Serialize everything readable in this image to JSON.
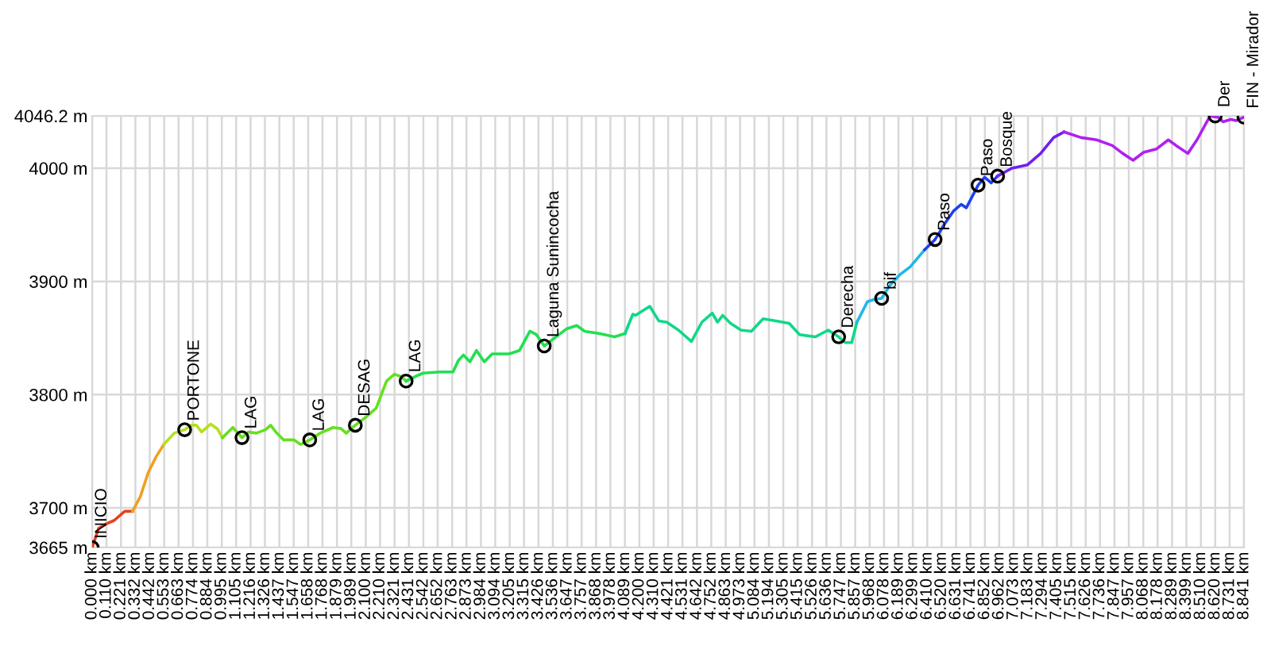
{
  "chart_data": {
    "type": "line",
    "xlim": [
      0,
      8.841
    ],
    "ylim": [
      3665,
      4046.2
    ],
    "xticks": [
      {
        "value": 0.0,
        "label": "0.000 km"
      },
      {
        "value": 0.11,
        "label": "0.110 km"
      },
      {
        "value": 0.221,
        "label": "0.221 km"
      },
      {
        "value": 0.332,
        "label": "0.332 km"
      },
      {
        "value": 0.442,
        "label": "0.442 km"
      },
      {
        "value": 0.553,
        "label": "0.553 km"
      },
      {
        "value": 0.663,
        "label": "0.663 km"
      },
      {
        "value": 0.774,
        "label": "0.774 km"
      },
      {
        "value": 0.884,
        "label": "0.884 km"
      },
      {
        "value": 0.995,
        "label": "0.995 km"
      },
      {
        "value": 1.105,
        "label": "1.105 km"
      },
      {
        "value": 1.216,
        "label": "1.216 km"
      },
      {
        "value": 1.326,
        "label": "1.326 km"
      },
      {
        "value": 1.437,
        "label": "1.437 km"
      },
      {
        "value": 1.547,
        "label": "1.547 km"
      },
      {
        "value": 1.658,
        "label": "1.658 km"
      },
      {
        "value": 1.768,
        "label": "1.768 km"
      },
      {
        "value": 1.879,
        "label": "1.879 km"
      },
      {
        "value": 1.989,
        "label": "1.989 km"
      },
      {
        "value": 2.1,
        "label": "2.100 km"
      },
      {
        "value": 2.21,
        "label": "2.210 km"
      },
      {
        "value": 2.321,
        "label": "2.321 km"
      },
      {
        "value": 2.431,
        "label": "2.431 km"
      },
      {
        "value": 2.542,
        "label": "2.542 km"
      },
      {
        "value": 2.652,
        "label": "2.652 km"
      },
      {
        "value": 2.763,
        "label": "2.763 km"
      },
      {
        "value": 2.873,
        "label": "2.873 km"
      },
      {
        "value": 2.984,
        "label": "2.984 km"
      },
      {
        "value": 3.094,
        "label": "3.094 km"
      },
      {
        "value": 3.205,
        "label": "3.205 km"
      },
      {
        "value": 3.315,
        "label": "3.315 km"
      },
      {
        "value": 3.426,
        "label": "3.426 km"
      },
      {
        "value": 3.536,
        "label": "3.536 km"
      },
      {
        "value": 3.647,
        "label": "3.647 km"
      },
      {
        "value": 3.757,
        "label": "3.757 km"
      },
      {
        "value": 3.868,
        "label": "3.868 km"
      },
      {
        "value": 3.978,
        "label": "3.978 km"
      },
      {
        "value": 4.089,
        "label": "4.089 km"
      },
      {
        "value": 4.2,
        "label": "4.200 km"
      },
      {
        "value": 4.31,
        "label": "4.310 km"
      },
      {
        "value": 4.421,
        "label": "4.421 km"
      },
      {
        "value": 4.531,
        "label": "4.531 km"
      },
      {
        "value": 4.642,
        "label": "4.642 km"
      },
      {
        "value": 4.752,
        "label": "4.752 km"
      },
      {
        "value": 4.863,
        "label": "4.863 km"
      },
      {
        "value": 4.973,
        "label": "4.973 km"
      },
      {
        "value": 5.084,
        "label": "5.084 km"
      },
      {
        "value": 5.194,
        "label": "5.194 km"
      },
      {
        "value": 5.305,
        "label": "5.305 km"
      },
      {
        "value": 5.415,
        "label": "5.415 km"
      },
      {
        "value": 5.526,
        "label": "5.526 km"
      },
      {
        "value": 5.636,
        "label": "5.636 km"
      },
      {
        "value": 5.747,
        "label": "5.747 km"
      },
      {
        "value": 5.857,
        "label": "5.857 km"
      },
      {
        "value": 5.968,
        "label": "5.968 km"
      },
      {
        "value": 6.078,
        "label": "6.078 km"
      },
      {
        "value": 6.189,
        "label": "6.189 km"
      },
      {
        "value": 6.299,
        "label": "6.299 km"
      },
      {
        "value": 6.41,
        "label": "6.410 km"
      },
      {
        "value": 6.52,
        "label": "6.520 km"
      },
      {
        "value": 6.631,
        "label": "6.631 km"
      },
      {
        "value": 6.741,
        "label": "6.741 km"
      },
      {
        "value": 6.852,
        "label": "6.852 km"
      },
      {
        "value": 6.962,
        "label": "6.962 km"
      },
      {
        "value": 7.073,
        "label": "7.073 km"
      },
      {
        "value": 7.183,
        "label": "7.183 km"
      },
      {
        "value": 7.294,
        "label": "7.294 km"
      },
      {
        "value": 7.405,
        "label": "7.405 km"
      },
      {
        "value": 7.515,
        "label": "7.515 km"
      },
      {
        "value": 7.626,
        "label": "7.626 km"
      },
      {
        "value": 7.736,
        "label": "7.736 km"
      },
      {
        "value": 7.847,
        "label": "7.847 km"
      },
      {
        "value": 7.957,
        "label": "7.957 km"
      },
      {
        "value": 8.068,
        "label": "8.068 km"
      },
      {
        "value": 8.178,
        "label": "8.178 km"
      },
      {
        "value": 8.289,
        "label": "8.289 km"
      },
      {
        "value": 8.399,
        "label": "8.399 km"
      },
      {
        "value": 8.51,
        "label": "8.510 km"
      },
      {
        "value": 8.62,
        "label": "8.620 km"
      },
      {
        "value": 8.731,
        "label": "8.731 km"
      },
      {
        "value": 8.841,
        "label": "8.841 km"
      }
    ],
    "yticks": [
      {
        "value": 3665,
        "label": "3665 m"
      },
      {
        "value": 3700,
        "label": "3700 m"
      },
      {
        "value": 3800,
        "label": "3800 m"
      },
      {
        "value": 3900,
        "label": "3900 m"
      },
      {
        "value": 4000,
        "label": "4000 m"
      },
      {
        "value": 4046.2,
        "label": "4046.2 m"
      }
    ],
    "grid": true,
    "series": [
      {
        "color": "#e8401c",
        "x": [
          0.0,
          0.05,
          0.11,
          0.17,
          0.25,
          0.31
        ],
        "values": [
          3665,
          3682,
          3686,
          3689,
          3697,
          3697
        ]
      },
      {
        "color": "#f0a020",
        "x": [
          0.31,
          0.37,
          0.43,
          0.49,
          0.55
        ],
        "values": [
          3697,
          3710,
          3731,
          3745,
          3756
        ]
      },
      {
        "color": "#b4e01c",
        "x": [
          0.55,
          0.63,
          0.71,
          0.76,
          0.8,
          0.84,
          0.91,
          0.96,
          1.0
        ],
        "values": [
          3756,
          3766,
          3769,
          3773,
          3773,
          3767,
          3774,
          3770,
          3762
        ]
      },
      {
        "color": "#64e020",
        "x": [
          1.0,
          1.08,
          1.15,
          1.2,
          1.26,
          1.33,
          1.37,
          1.41,
          1.47,
          1.55,
          1.6,
          1.67,
          1.75,
          1.85,
          1.91,
          1.95,
          2.02,
          2.1,
          2.18,
          2.26,
          2.32,
          2.37,
          2.41
        ],
        "values": [
          3762,
          3771,
          3762,
          3767,
          3766,
          3769,
          3773,
          3767,
          3760,
          3760,
          3756,
          3760,
          3766,
          3771,
          3770,
          3766,
          3773,
          3780,
          3788,
          3812,
          3818,
          3816,
          3812
        ]
      },
      {
        "color": "#20e050",
        "x": [
          2.41,
          2.48,
          2.54,
          2.67,
          2.77,
          2.81,
          2.85,
          2.9,
          2.95,
          3.01,
          3.07,
          3.2,
          3.28,
          3.36,
          3.41,
          3.47,
          3.56,
          3.64,
          3.72,
          3.78,
          3.89,
          4.01,
          4.09
        ],
        "values": [
          3812,
          3816,
          3819,
          3820,
          3820,
          3830,
          3835,
          3829,
          3839,
          3829,
          3836,
          3836,
          3839,
          3856,
          3853,
          3843,
          3851,
          3858,
          3861,
          3856,
          3854,
          3851,
          3854
        ]
      },
      {
        "color": "#10d888",
        "x": [
          4.09,
          4.15,
          4.17,
          4.28,
          4.35,
          4.41,
          4.5,
          4.6,
          4.68,
          4.76,
          4.8,
          4.84,
          4.9,
          4.98,
          5.06,
          5.15,
          5.25,
          5.35,
          5.43,
          5.55,
          5.65,
          5.73,
          5.78,
          5.83,
          5.87
        ],
        "values": [
          3854,
          3871,
          3870,
          3878,
          3865,
          3864,
          3857,
          3847,
          3864,
          3872,
          3864,
          3870,
          3863,
          3857,
          3856,
          3867,
          3865,
          3863,
          3853,
          3851,
          3857,
          3851,
          3846,
          3846,
          3864
        ]
      },
      {
        "color": "#20b8e8",
        "x": [
          5.87,
          5.95,
          6.0,
          6.06,
          6.12,
          6.2,
          6.28,
          6.39
        ],
        "values": [
          3864,
          3882,
          3884,
          3885,
          3896,
          3906,
          3913,
          3928
        ]
      },
      {
        "color": "#2040f0",
        "x": [
          6.39,
          6.47,
          6.55,
          6.61,
          6.67,
          6.71,
          6.8,
          6.85,
          6.9,
          6.95
        ],
        "values": [
          3928,
          3937,
          3952,
          3962,
          3968,
          3965,
          3985,
          3992,
          3987,
          3993
        ]
      },
      {
        "color": "#7020f0",
        "x": [
          6.95,
          7.06,
          7.18,
          7.28,
          7.38,
          7.46
        ],
        "values": [
          3993,
          4000,
          4003,
          4013,
          4027,
          4032
        ]
      },
      {
        "color": "#b020f0",
        "x": [
          7.46,
          7.59,
          7.71,
          7.83,
          7.91,
          7.99,
          8.07,
          8.17,
          8.26,
          8.32,
          8.41,
          8.48,
          8.58,
          8.64,
          8.68,
          8.74,
          8.78,
          8.84
        ],
        "values": [
          4032,
          4027,
          4025,
          4020,
          4013,
          4007,
          4014,
          4017,
          4025,
          4020,
          4013,
          4025,
          4046,
          4045,
          4041,
          4043,
          4042,
          4045
        ]
      },
      {
        "type": "scatter",
        "color": "#000000",
        "marker": "circle",
        "x": [
          0.0,
          0.71,
          1.15,
          1.67,
          2.02,
          2.41,
          3.47,
          5.73,
          6.06,
          6.47,
          6.8,
          6.95,
          8.62,
          8.841
        ],
        "values": [
          3665,
          3769,
          3762,
          3760,
          3773,
          3812,
          3843,
          3851,
          3885,
          3937,
          3985,
          3993,
          4046,
          4045
        ]
      }
    ],
    "annotations": [
      {
        "text": "INICIO",
        "x": 0.0,
        "y": 3665
      },
      {
        "text": "PORTONE",
        "x": 0.71,
        "y": 3769
      },
      {
        "text": "LAG",
        "x": 1.15,
        "y": 3762
      },
      {
        "text": "LAG",
        "x": 1.67,
        "y": 3760
      },
      {
        "text": "DESAG",
        "x": 2.02,
        "y": 3773
      },
      {
        "text": "LAG",
        "x": 2.41,
        "y": 3812
      },
      {
        "text": "Laguna Sunincocha",
        "x": 3.47,
        "y": 3843
      },
      {
        "text": "Derecha",
        "x": 5.73,
        "y": 3851
      },
      {
        "text": "bif",
        "x": 6.06,
        "y": 3885
      },
      {
        "text": "Paso",
        "x": 6.47,
        "y": 3937
      },
      {
        "text": "Paso",
        "x": 6.8,
        "y": 3985
      },
      {
        "text": "Bosque",
        "x": 6.95,
        "y": 3993
      },
      {
        "text": "Der",
        "x": 8.62,
        "y": 4046
      },
      {
        "text": "FIN - Mirador",
        "x": 8.841,
        "y": 4045
      }
    ]
  }
}
